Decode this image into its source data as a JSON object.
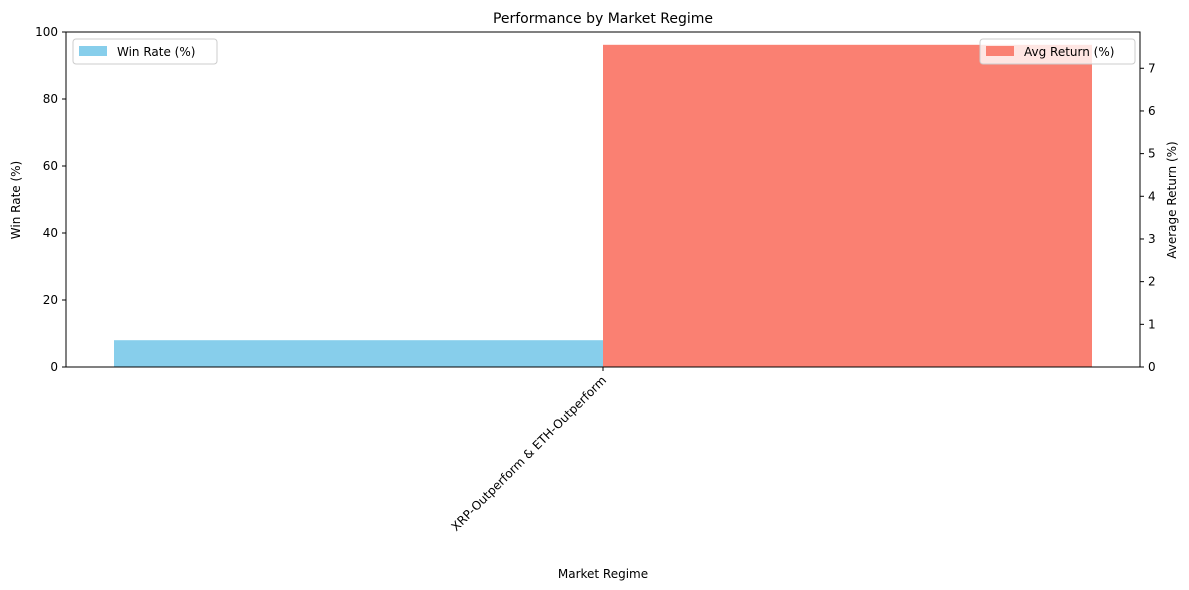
{
  "chart_data": {
    "type": "bar",
    "title": "Performance by Market Regime",
    "xlabel": "Market Regime",
    "categories": [
      "XRP-Outperform & ETH-Outperform"
    ],
    "left_axis": {
      "label": "Win Rate (%)",
      "ylim": [
        0,
        100
      ],
      "ticks": [
        0,
        20,
        40,
        60,
        80,
        100
      ]
    },
    "right_axis": {
      "label": "Average Return (%)",
      "ylim": [
        0,
        7.85
      ],
      "ticks": [
        0,
        1,
        2,
        3,
        4,
        5,
        6,
        7
      ]
    },
    "series": [
      {
        "name": "Win Rate (%)",
        "axis": "left",
        "values": [
          8.0
        ],
        "color": "#87ceeb"
      },
      {
        "name": "Avg Return (%)",
        "axis": "right",
        "values": [
          7.55
        ],
        "color": "#fa8072"
      }
    ],
    "legends": {
      "left_series": "top-left",
      "right_series": "top-right"
    },
    "grid": false
  }
}
